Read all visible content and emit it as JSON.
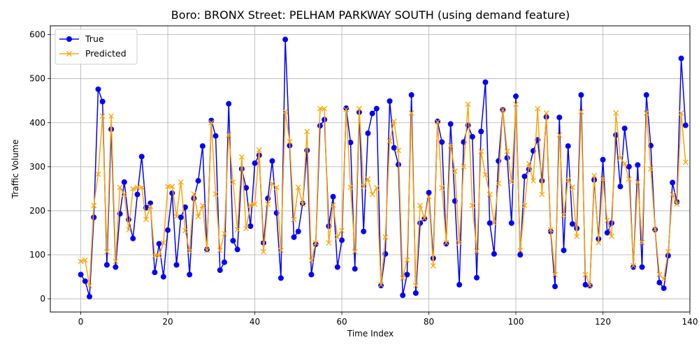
{
  "chart_data": {
    "type": "line",
    "title": "Boro: BRONX Street: PELHAM PARKWAY SOUTH (using demand feature)",
    "xlabel": "Time Index",
    "ylabel": "Traffic Volume",
    "xlim": [
      -7,
      140
    ],
    "ylim": [
      -30,
      620
    ],
    "xticks": [
      0,
      20,
      40,
      60,
      80,
      100,
      120,
      140
    ],
    "yticks": [
      0,
      100,
      200,
      300,
      400,
      500,
      600
    ],
    "grid": true,
    "legend_position": "top-left",
    "series": [
      {
        "name": "True",
        "color": "#0000ff",
        "marker": "circle",
        "values": [
          55,
          40,
          5,
          185,
          476,
          448,
          77,
          385,
          72,
          193,
          265,
          180,
          137,
          237,
          323,
          207,
          217,
          60,
          125,
          50,
          156,
          240,
          77,
          185,
          208,
          55,
          228,
          268,
          347,
          112,
          405,
          370,
          65,
          83,
          443,
          132,
          112,
          295,
          252,
          165,
          308,
          326,
          127,
          228,
          313,
          195,
          47,
          589,
          348,
          140,
          153,
          217,
          337,
          55,
          124,
          393,
          407,
          165,
          232,
          72,
          133,
          433,
          355,
          68,
          424,
          153,
          376,
          421,
          432,
          30,
          102,
          449,
          343,
          305,
          8,
          55,
          463,
          13,
          172,
          182,
          241,
          92,
          403,
          356,
          125,
          397,
          222,
          32,
          356,
          394,
          368,
          48,
          380,
          492,
          172,
          102,
          313,
          429,
          320,
          172,
          460,
          100,
          278,
          294,
          336,
          361,
          268,
          413,
          153,
          28,
          412,
          110,
          347,
          170,
          160,
          463,
          32,
          30,
          270,
          136,
          316,
          150,
          172,
          372,
          255,
          387,
          300,
          72,
          304,
          72,
          463,
          348,
          157,
          37,
          24,
          98,
          264,
          220,
          546,
          394
        ]
      },
      {
        "name": "Predicted",
        "color": "#ffa500",
        "marker": "x",
        "values": [
          85,
          88,
          30,
          212,
          283,
          415,
          107,
          415,
          85,
          253,
          237,
          157,
          250,
          253,
          253,
          180,
          210,
          98,
          98,
          127,
          255,
          255,
          187,
          265,
          155,
          108,
          238,
          187,
          212,
          110,
          400,
          238,
          110,
          148,
          372,
          265,
          157,
          322,
          160,
          213,
          215,
          338,
          107,
          215,
          262,
          253,
          110,
          425,
          357,
          180,
          253,
          215,
          380,
          87,
          127,
          432,
          432,
          127,
          213,
          140,
          155,
          430,
          253,
          107,
          432,
          255,
          272,
          237,
          252,
          32,
          140,
          358,
          403,
          337,
          47,
          88,
          422,
          30,
          212,
          183,
          232,
          75,
          402,
          252,
          127,
          348,
          290,
          127,
          300,
          442,
          212,
          108,
          335,
          282,
          237,
          172,
          262,
          430,
          335,
          265,
          442,
          110,
          212,
          307,
          268,
          432,
          237,
          422,
          157,
          55,
          372,
          190,
          270,
          253,
          142,
          425,
          55,
          30,
          280,
          127,
          272,
          178,
          142,
          422,
          320,
          307,
          272,
          75,
          265,
          128,
          422,
          295,
          158,
          55,
          45,
          107,
          237,
          215,
          422,
          310
        ]
      }
    ]
  }
}
